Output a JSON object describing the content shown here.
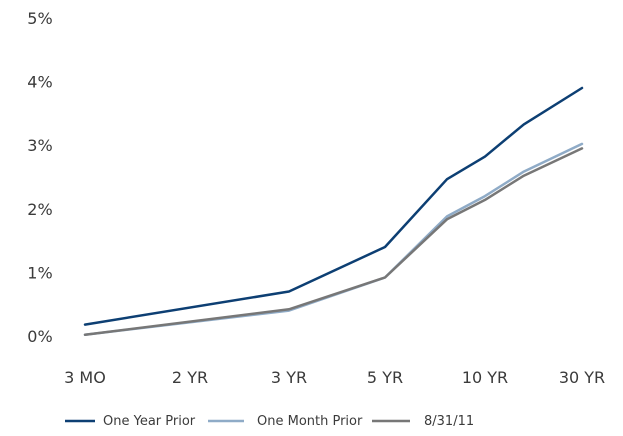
{
  "chart_data": {
    "type": "line",
    "categories": [
      "3 MO",
      "2 YR",
      "3 YR",
      "5 YR",
      "10 YR",
      "30 YR"
    ],
    "y_tick_labels": [
      "0%",
      "1%",
      "2%",
      "3%",
      "4%",
      "5%"
    ],
    "ylim": [
      0,
      5
    ],
    "grid": false,
    "legend_position": "bottom",
    "series": [
      {
        "name": "One Year Prior",
        "color": "#0d3f73",
        "points": [
          {
            "x": "3 MO",
            "y": 0.18
          },
          {
            "x": "3 YR",
            "y": 0.7
          },
          {
            "x": "5 YR",
            "y": 1.4
          },
          {
            "x": "10 YR",
            "y": 2.82
          },
          {
            "x": "30 YR",
            "y": 3.9
          }
        ]
      },
      {
        "name": "One Month Prior",
        "color": "#8fabc7",
        "points": [
          {
            "x": "3 MO",
            "y": 0.02
          },
          {
            "x": "3 YR",
            "y": 0.4
          },
          {
            "x": "5 YR",
            "y": 0.92
          },
          {
            "x": "10 YR",
            "y": 2.2
          },
          {
            "x": "30 YR",
            "y": 3.02
          }
        ]
      },
      {
        "name": "8/31/11",
        "color": "#777777",
        "points": [
          {
            "x": "3 MO",
            "y": 0.02
          },
          {
            "x": "3 YR",
            "y": 0.42
          },
          {
            "x": "5 YR",
            "y": 0.92
          },
          {
            "x": "10 YR",
            "y": 2.14
          },
          {
            "x": "30 YR",
            "y": 2.95
          }
        ]
      }
    ]
  }
}
